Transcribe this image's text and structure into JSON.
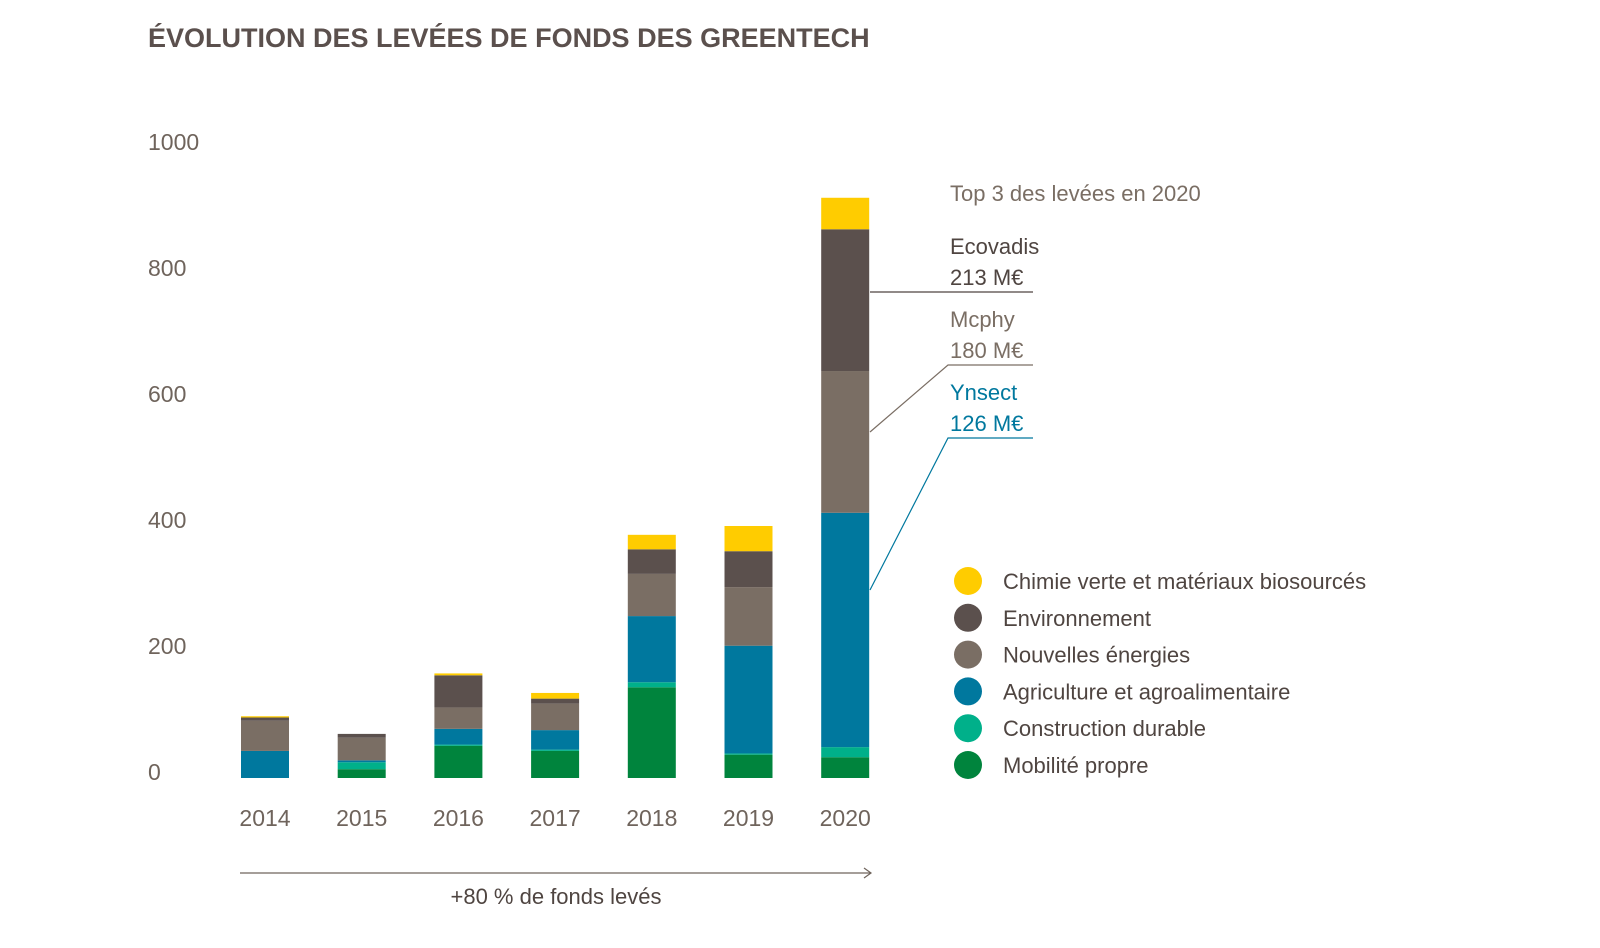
{
  "chart_data": {
    "type": "bar",
    "stacked": true,
    "title": "ÉVOLUTION DES LEVÉES DE FONDS DES GREENTECH",
    "xlabel": "",
    "ylabel": "",
    "ylim": [
      0,
      1000
    ],
    "yticks": [
      0,
      200,
      400,
      600,
      800,
      1000
    ],
    "categories": [
      "2014",
      "2015",
      "2016",
      "2017",
      "2018",
      "2019",
      "2020"
    ],
    "series": [
      {
        "name": "Mobilité propre",
        "color": "#00843d",
        "values": [
          0,
          14,
          51,
          43,
          144,
          37,
          33
        ]
      },
      {
        "name": "Construction durable",
        "color": "#00b08a",
        "values": [
          0,
          11,
          2,
          2,
          8,
          2,
          16
        ]
      },
      {
        "name": "Agriculture et agroalimentaire",
        "color": "#00789e",
        "values": [
          43,
          3,
          25,
          31,
          105,
          171,
          372
        ]
      },
      {
        "name": "Nouvelles énergies",
        "color": "#7a6e64",
        "values": [
          48,
          36,
          34,
          42,
          67,
          93,
          225
        ]
      },
      {
        "name": "Environnement",
        "color": "#5b504d",
        "values": [
          5,
          6,
          51,
          8,
          39,
          57,
          225
        ]
      },
      {
        "name": "Chimie verte et matériaux biosourcés",
        "color": "#ffcc00",
        "values": [
          2,
          0,
          3,
          9,
          23,
          40,
          50
        ]
      }
    ],
    "legend_order": [
      5,
      4,
      3,
      2,
      1,
      0
    ],
    "legend_position": "right",
    "grid": false,
    "annotations": {
      "heading": "Top 3 des levées en 2020",
      "items": [
        {
          "name": "Ecovadis",
          "amount": "213 M€",
          "series": "Environnement",
          "color": "#4f4541"
        },
        {
          "name": "Mcphy",
          "amount": "180 M€",
          "series": "Nouvelles énergies",
          "color": "#7a6e64"
        },
        {
          "name": "Ynsect",
          "amount": "126 M€",
          "series": "Agriculture et agroalimentaire",
          "color": "#00789e"
        }
      ],
      "growth": "+80 % de fonds levés"
    }
  }
}
